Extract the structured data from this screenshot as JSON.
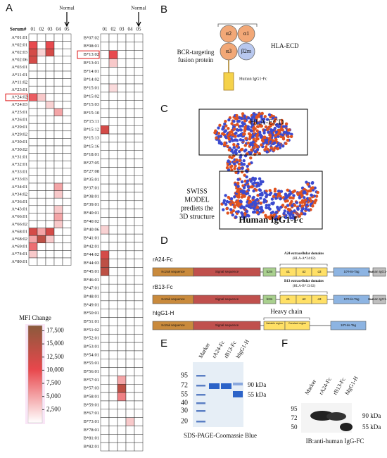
{
  "panel_a": {
    "letter": "A",
    "serum_label": "Serum#",
    "normal_label": "Normal",
    "columns": [
      "01",
      "02",
      "03",
      "04",
      "05"
    ],
    "table_left": [
      {
        "allele": "A*01:01",
        "mfi": [
          0,
          0,
          0,
          0,
          0
        ]
      },
      {
        "allele": "A*02:01",
        "mfi": [
          10000,
          0,
          10000,
          0,
          0
        ]
      },
      {
        "allele": "A*02:03",
        "mfi": [
          12000,
          2500,
          12000,
          0,
          0
        ]
      },
      {
        "allele": "A*02:06",
        "mfi": [
          12000,
          0,
          0,
          0,
          0
        ]
      },
      {
        "allele": "A*03:01",
        "mfi": [
          0,
          0,
          0,
          0,
          0
        ]
      },
      {
        "allele": "A*11:01",
        "mfi": [
          0,
          0,
          0,
          0,
          0
        ]
      },
      {
        "allele": "A*11:02",
        "mfi": [
          0,
          0,
          0,
          0,
          0
        ]
      },
      {
        "allele": "A*23:01",
        "mfi": [
          0,
          0,
          0,
          0,
          0
        ]
      },
      {
        "allele": "A*24:02",
        "mfi": [
          9000,
          3000,
          0,
          0,
          0
        ],
        "highlight": true
      },
      {
        "allele": "A*24:03",
        "mfi": [
          0,
          0,
          2500,
          0,
          0
        ]
      },
      {
        "allele": "A*25:01",
        "mfi": [
          0,
          0,
          0,
          5000,
          0
        ]
      },
      {
        "allele": "A*26:01",
        "mfi": [
          0,
          0,
          0,
          0,
          0
        ]
      },
      {
        "allele": "A*29:01",
        "mfi": [
          0,
          0,
          0,
          0,
          0
        ]
      },
      {
        "allele": "A*29:02",
        "mfi": [
          0,
          0,
          0,
          0,
          0
        ]
      },
      {
        "allele": "A*30:01",
        "mfi": [
          0,
          0,
          0,
          0,
          0
        ]
      },
      {
        "allele": "A*30:02",
        "mfi": [
          0,
          0,
          0,
          0,
          0
        ]
      },
      {
        "allele": "A*31:01",
        "mfi": [
          0,
          0,
          0,
          0,
          0
        ]
      },
      {
        "allele": "A*32:01",
        "mfi": [
          0,
          0,
          0,
          0,
          0
        ]
      },
      {
        "allele": "A*33:01",
        "mfi": [
          0,
          0,
          0,
          0,
          0
        ]
      },
      {
        "allele": "A*33:03",
        "mfi": [
          0,
          0,
          0,
          0,
          0
        ]
      },
      {
        "allele": "A*34:01",
        "mfi": [
          0,
          0,
          0,
          5000,
          0
        ]
      },
      {
        "allele": "A*34:02",
        "mfi": [
          0,
          0,
          0,
          3000,
          0
        ]
      },
      {
        "allele": "A*36:01",
        "mfi": [
          0,
          0,
          0,
          0,
          0
        ]
      },
      {
        "allele": "A*43:01",
        "mfi": [
          0,
          0,
          0,
          3000,
          0
        ]
      },
      {
        "allele": "A*66:01",
        "mfi": [
          0,
          0,
          0,
          5000,
          0
        ]
      },
      {
        "allele": "A*66:02",
        "mfi": [
          0,
          0,
          0,
          3000,
          0
        ]
      },
      {
        "allele": "A*68:01",
        "mfi": [
          12000,
          5000,
          12000,
          0,
          0
        ]
      },
      {
        "allele": "A*68:02",
        "mfi": [
          5000,
          14000,
          3000,
          0,
          0
        ]
      },
      {
        "allele": "A*69:01",
        "mfi": [
          8000,
          0,
          0,
          0,
          0
        ]
      },
      {
        "allele": "A*74:01",
        "mfi": [
          3000,
          0,
          0,
          0,
          0
        ]
      },
      {
        "allele": "A*80:01",
        "mfi": [
          0,
          0,
          0,
          0,
          0
        ]
      }
    ],
    "table_right": [
      {
        "allele": "B*07:02",
        "mfi": [
          0,
          0,
          0,
          0,
          0
        ]
      },
      {
        "allele": "B*08:01",
        "mfi": [
          0,
          0,
          0,
          0,
          0
        ]
      },
      {
        "allele": "B*13:02",
        "mfi": [
          0,
          10000,
          0,
          0,
          0
        ],
        "highlight": true
      },
      {
        "allele": "B*13:01",
        "mfi": [
          0,
          3000,
          0,
          0,
          0
        ]
      },
      {
        "allele": "B*14:01",
        "mfi": [
          0,
          0,
          0,
          0,
          0
        ]
      },
      {
        "allele": "B*14:02",
        "mfi": [
          0,
          0,
          0,
          0,
          0
        ]
      },
      {
        "allele": "B*15:01",
        "mfi": [
          0,
          2000,
          0,
          0,
          0
        ]
      },
      {
        "allele": "B*15:02",
        "mfi": [
          0,
          0,
          0,
          0,
          0
        ]
      },
      {
        "allele": "B*15:03",
        "mfi": [
          0,
          0,
          0,
          0,
          0
        ]
      },
      {
        "allele": "B*15:10",
        "mfi": [
          0,
          0,
          0,
          0,
          0
        ]
      },
      {
        "allele": "B*15:11",
        "mfi": [
          0,
          0,
          0,
          0,
          0
        ]
      },
      {
        "allele": "B*15:12",
        "mfi": [
          12000,
          0,
          0,
          0,
          0
        ]
      },
      {
        "allele": "B*15:13",
        "mfi": [
          0,
          0,
          0,
          0,
          0
        ]
      },
      {
        "allele": "B*15:16",
        "mfi": [
          0,
          0,
          0,
          0,
          0
        ]
      },
      {
        "allele": "B*18:01",
        "mfi": [
          0,
          0,
          0,
          0,
          0
        ]
      },
      {
        "allele": "B*27:05",
        "mfi": [
          0,
          0,
          0,
          0,
          0
        ]
      },
      {
        "allele": "B*27:08",
        "mfi": [
          0,
          0,
          0,
          0,
          0
        ]
      },
      {
        "allele": "B*35:01",
        "mfi": [
          0,
          0,
          0,
          0,
          0
        ]
      },
      {
        "allele": "B*37:01",
        "mfi": [
          0,
          0,
          0,
          0,
          0
        ]
      },
      {
        "allele": "B*38:01",
        "mfi": [
          0,
          0,
          0,
          0,
          0
        ]
      },
      {
        "allele": "B*39:01",
        "mfi": [
          0,
          0,
          0,
          0,
          0
        ]
      },
      {
        "allele": "B*40:01",
        "mfi": [
          0,
          0,
          0,
          0,
          0
        ]
      },
      {
        "allele": "B*40:02",
        "mfi": [
          0,
          0,
          0,
          0,
          0
        ]
      },
      {
        "allele": "B*40:06",
        "mfi": [
          2500,
          0,
          0,
          0,
          0
        ]
      },
      {
        "allele": "B*41:01",
        "mfi": [
          0,
          0,
          0,
          0,
          0
        ]
      },
      {
        "allele": "B*42:01",
        "mfi": [
          0,
          0,
          0,
          0,
          0
        ]
      },
      {
        "allele": "B*44:02",
        "mfi": [
          12000,
          0,
          0,
          0,
          0
        ]
      },
      {
        "allele": "B*44:03",
        "mfi": [
          14000,
          0,
          0,
          0,
          0
        ]
      },
      {
        "allele": "B*45:01",
        "mfi": [
          14000,
          0,
          0,
          0,
          0
        ]
      },
      {
        "allele": "B*46:01",
        "mfi": [
          0,
          0,
          0,
          0,
          0
        ]
      },
      {
        "allele": "B*47:01",
        "mfi": [
          0,
          0,
          0,
          0,
          0
        ]
      },
      {
        "allele": "B*48:01",
        "mfi": [
          0,
          0,
          0,
          0,
          0
        ]
      },
      {
        "allele": "B*49:01",
        "mfi": [
          0,
          0,
          0,
          0,
          0
        ]
      },
      {
        "allele": "B*50:01",
        "mfi": [
          0,
          0,
          0,
          0,
          0
        ]
      },
      {
        "allele": "B*51:01",
        "mfi": [
          0,
          0,
          0,
          0,
          0
        ]
      },
      {
        "allele": "B*51:02",
        "mfi": [
          0,
          0,
          0,
          0,
          0
        ]
      },
      {
        "allele": "B*52:01",
        "mfi": [
          0,
          0,
          0,
          0,
          0
        ]
      },
      {
        "allele": "B*53:01",
        "mfi": [
          0,
          0,
          0,
          0,
          0
        ]
      },
      {
        "allele": "B*54:01",
        "mfi": [
          0,
          0,
          0,
          0,
          0
        ]
      },
      {
        "allele": "B*55:01",
        "mfi": [
          0,
          0,
          0,
          0,
          0
        ]
      },
      {
        "allele": "B*56:01",
        "mfi": [
          0,
          0,
          0,
          0,
          0
        ]
      },
      {
        "allele": "B*57:01",
        "mfi": [
          0,
          0,
          5000,
          0,
          0
        ]
      },
      {
        "allele": "B*57:03",
        "mfi": [
          0,
          0,
          14000,
          0,
          0
        ]
      },
      {
        "allele": "B*58:01",
        "mfi": [
          0,
          0,
          7000,
          0,
          0
        ]
      },
      {
        "allele": "B*59:01",
        "mfi": [
          0,
          0,
          0,
          0,
          0
        ]
      },
      {
        "allele": "B*67:01",
        "mfi": [
          0,
          0,
          0,
          0,
          0
        ]
      },
      {
        "allele": "B*73:01",
        "mfi": [
          0,
          0,
          0,
          3000,
          0
        ]
      },
      {
        "allele": "B*78:01",
        "mfi": [
          0,
          0,
          0,
          0,
          0
        ]
      },
      {
        "allele": "B*81:01",
        "mfi": [
          0,
          0,
          0,
          0,
          0
        ]
      },
      {
        "allele": "B*82:01",
        "mfi": [
          0,
          0,
          0,
          0,
          0
        ]
      }
    ],
    "colorbar": {
      "title": "MFI Change",
      "lim": [
        0,
        18500
      ],
      "ticks": [
        {
          "value": 2500,
          "label": "2,500"
        },
        {
          "value": 5000,
          "label": "5,000"
        },
        {
          "value": 7500,
          "label": "7,500"
        },
        {
          "value": 10000,
          "label": "10,000"
        },
        {
          "value": 12500,
          "label": "12,500"
        },
        {
          "value": 15000,
          "label": "15,000"
        },
        {
          "value": 17500,
          "label": "17,500"
        }
      ]
    }
  },
  "panel_b": {
    "letter": "B",
    "fusion_label": [
      "BCR-targeting",
      "fusion protein"
    ],
    "domains": [
      "α2",
      "α1",
      "α3",
      "β2m"
    ],
    "ecd_label": "HLA-ECD",
    "fc_label": "Human IgG1-Fc"
  },
  "panel_c": {
    "letter": "C",
    "ecd_label": "HLA-ECD",
    "model_label": [
      "SWISS",
      "MODEL",
      "prediets the",
      "3D structure"
    ],
    "fc_label": "Human IgG1-Fc"
  },
  "panel_d": {
    "letter": "D",
    "constructs": [
      {
        "name": "rA24-Fc",
        "annotation": [
          "A24 extracellular domains",
          "(HLA-A*24:02)"
        ],
        "segments": [
          "Kozak sequence",
          "Signal sequence",
          "b2m",
          "α1",
          "α2",
          "α3",
          "10*His-Tag",
          "Human IgG1-Fc"
        ]
      },
      {
        "name": "rB13-Fc",
        "annotation": [
          "B13 extracellular domains",
          "(HLA-B*13:02)"
        ],
        "segments": [
          "Kozak sequence",
          "Signal sequence",
          "b2m",
          "α1",
          "α2",
          "α3",
          "10*His-Tag",
          "Human IgG1-Fc"
        ]
      },
      {
        "name": "hIgG1-H",
        "annotation": [
          "Heavy chain"
        ],
        "segments": [
          "Kozak sequence",
          "Signal sequence",
          "Variable region",
          "Constant region",
          "10*His-Tag"
        ]
      }
    ]
  },
  "panel_e": {
    "letter": "E",
    "lanes": [
      "Marker",
      "rA24-Fc",
      "rB13-Fc",
      "hIgG1-H"
    ],
    "markers": [
      "95",
      "72",
      "55",
      "40",
      "30",
      "20"
    ],
    "band_labels": [
      "90 kDa",
      "55 kDa"
    ],
    "caption": "SDS-PAGE-Coomassie Blue"
  },
  "panel_f": {
    "letter": "F",
    "lanes": [
      "Marker",
      "rA24-Fc",
      "rB13-Fc",
      "hIgG1-H"
    ],
    "markers": [
      "95",
      "72",
      "50"
    ],
    "band_labels": [
      "90 kDa",
      "55 kDa"
    ],
    "caption": "IB:anti-human IgG-FC"
  }
}
